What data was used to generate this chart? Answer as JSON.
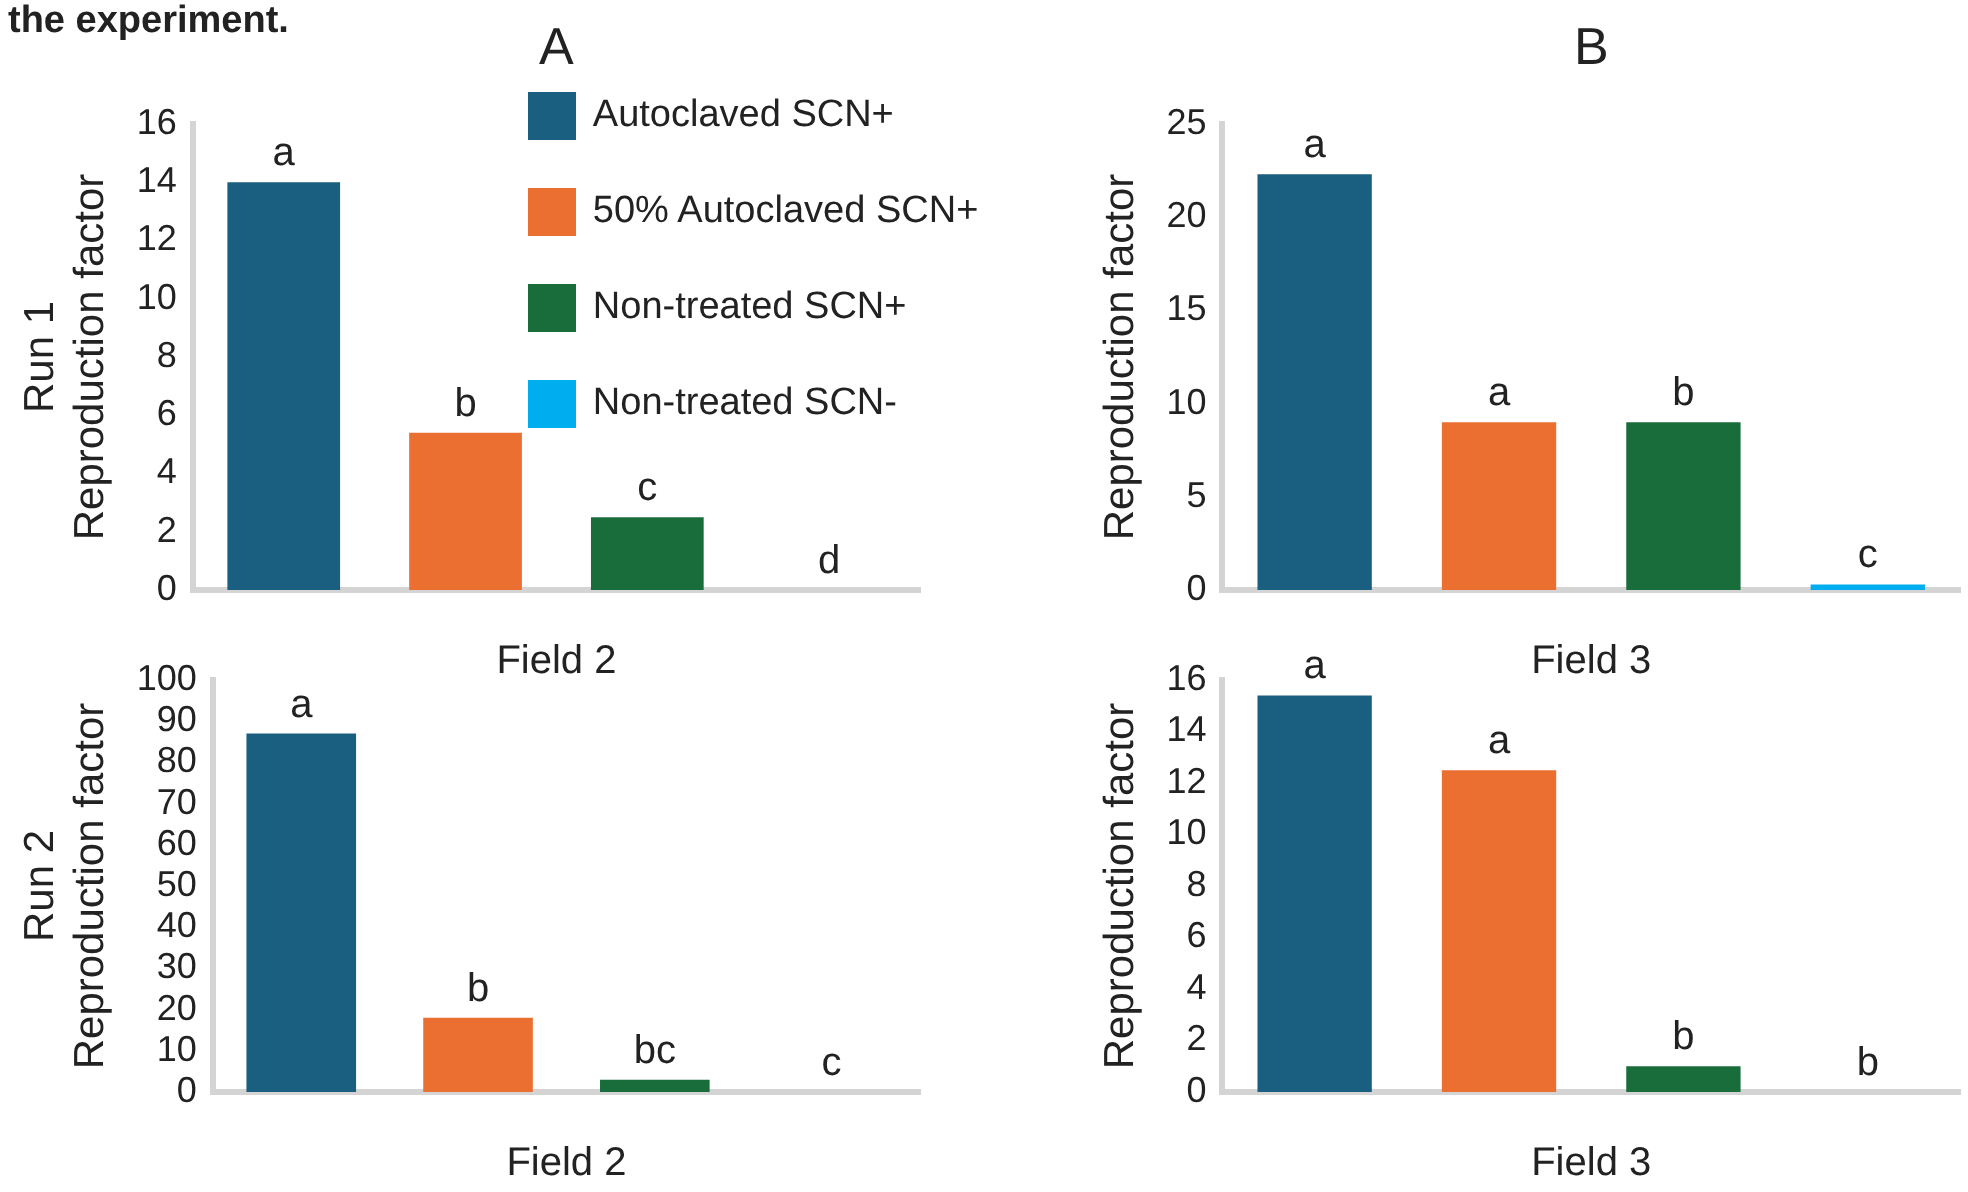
{
  "chart_data": [
    {
      "type": "bar",
      "title": "A",
      "annotations": [
        "the experiment."
      ],
      "categories": [
        null,
        null,
        null,
        null
      ],
      "xlabel": "Field 2",
      "ylabel": "Run 1\nReproduction factor",
      "ylim": [
        0,
        16
      ],
      "yticks": [
        0,
        2,
        4,
        6,
        8,
        10,
        12,
        14,
        16
      ],
      "grid": false,
      "legend": "top right",
      "series": [
        {
          "name": "Autoclaved SCN+",
          "color": "#1a5e80",
          "values": [
            14,
            null,
            null,
            null
          ],
          "value_labels": [
            "a",
            null,
            null,
            null
          ]
        },
        {
          "name": "50% Autoclaved SCN+",
          "color": "#eb6f30",
          "values": [
            null,
            5.4,
            null,
            null
          ],
          "value_labels": [
            null,
            "b",
            null,
            null
          ]
        },
        {
          "name": "Non-treated SCN+",
          "color": "#186d3a",
          "values": [
            null,
            null,
            2.5,
            null
          ],
          "value_labels": [
            null,
            null,
            "c",
            null
          ]
        },
        {
          "name": "Non-treated SCN-",
          "color": "#00aeef",
          "values": [
            null,
            null,
            null,
            0
          ],
          "value_labels": [
            null,
            null,
            null,
            "d"
          ]
        }
      ]
    },
    {
      "type": "bar",
      "title": "B",
      "categories": [
        null,
        null,
        null,
        null
      ],
      "xlabel": "Field 3",
      "ylabel": "Reproduction factor",
      "ylim": [
        0,
        25
      ],
      "yticks": [
        0,
        5,
        10,
        15,
        20,
        25
      ],
      "grid": false,
      "series": [
        {
          "color": "#1a5e80",
          "values": [
            22.3,
            null,
            null,
            null
          ],
          "value_labels": [
            "a",
            null,
            null,
            null
          ]
        },
        {
          "color": "#eb6f30",
          "values": [
            null,
            9,
            null,
            null
          ],
          "value_labels": [
            null,
            "a",
            null,
            null
          ]
        },
        {
          "color": "#186d3a",
          "values": [
            null,
            null,
            9,
            null
          ],
          "value_labels": [
            null,
            null,
            "b",
            null
          ]
        },
        {
          "color": "#00aeef",
          "values": [
            null,
            null,
            null,
            0.3
          ],
          "value_labels": [
            null,
            null,
            null,
            "c"
          ]
        }
      ]
    },
    {
      "type": "bar",
      "categories": [
        null,
        null,
        null,
        null
      ],
      "xlabel": "Field 2",
      "ylabel": "Run 2\nReproduction factor",
      "ylim": [
        0,
        100
      ],
      "yticks": [
        0,
        10,
        20,
        30,
        40,
        50,
        60,
        70,
        80,
        90,
        100
      ],
      "grid": false,
      "series": [
        {
          "color": "#1a5e80",
          "values": [
            87,
            null,
            null,
            null
          ],
          "value_labels": [
            "a",
            null,
            null,
            null
          ]
        },
        {
          "color": "#eb6f30",
          "values": [
            null,
            18,
            null,
            null
          ],
          "value_labels": [
            null,
            "b",
            null,
            null
          ]
        },
        {
          "color": "#186d3a",
          "values": [
            null,
            null,
            3,
            null
          ],
          "value_labels": [
            null,
            null,
            "bc",
            null
          ]
        },
        {
          "color": "#00aeef",
          "values": [
            null,
            null,
            null,
            0
          ],
          "value_labels": [
            null,
            null,
            null,
            "c"
          ]
        }
      ]
    },
    {
      "type": "bar",
      "categories": [
        null,
        null,
        null,
        null
      ],
      "xlabel": "Field 3",
      "ylabel": "Reproduction factor",
      "ylim": [
        0,
        16
      ],
      "yticks": [
        0,
        2,
        4,
        6,
        8,
        10,
        12,
        14,
        16
      ],
      "grid": false,
      "series": [
        {
          "color": "#1a5e80",
          "values": [
            15.4,
            null,
            null,
            null
          ],
          "value_labels": [
            "a",
            null,
            null,
            null
          ]
        },
        {
          "color": "#eb6f30",
          "values": [
            null,
            12.5,
            null,
            null
          ],
          "value_labels": [
            null,
            "a",
            null,
            null
          ]
        },
        {
          "color": "#186d3a",
          "values": [
            null,
            null,
            1,
            null
          ],
          "value_labels": [
            null,
            null,
            "b",
            null
          ]
        },
        {
          "color": "#00aeef",
          "values": [
            null,
            null,
            null,
            0
          ],
          "value_labels": [
            null,
            null,
            null,
            "b"
          ]
        }
      ]
    }
  ]
}
